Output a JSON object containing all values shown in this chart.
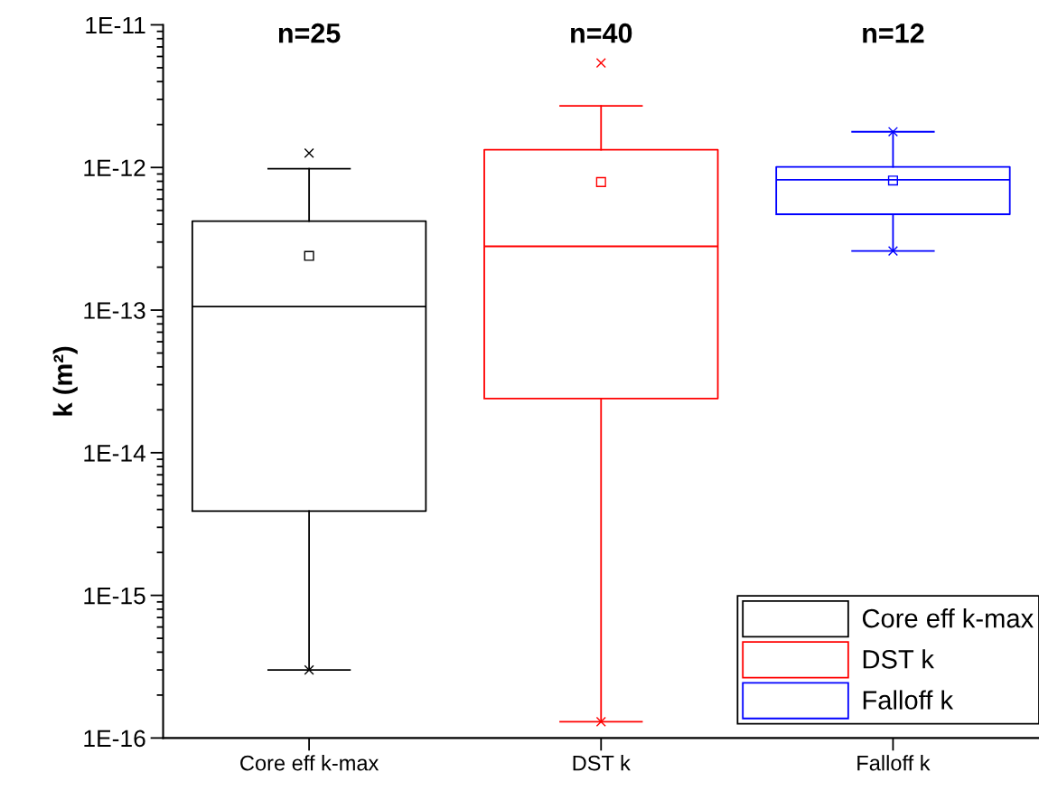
{
  "chart_data": {
    "type": "box",
    "ylabel": "k (m²)",
    "categories": [
      "Core eff k-max",
      "DST k",
      "Falloff k"
    ],
    "log": "y",
    "ylim": [
      1e-16,
      1e-11
    ],
    "yticks": [
      {
        "value": 1e-16,
        "label": "1E-16"
      },
      {
        "value": 1e-15,
        "label": "1E-15"
      },
      {
        "value": 1e-14,
        "label": "1E-14"
      },
      {
        "value": 1e-13,
        "label": "1E-13"
      },
      {
        "value": 1e-12,
        "label": "1E-12"
      },
      {
        "value": 1e-11,
        "label": "1E-11"
      }
    ],
    "grid": false,
    "legend": "bottom right",
    "series": [
      {
        "name": "Core eff k-max",
        "color": "#000000",
        "boxes": [
          {
            "low": 3e-16,
            "q1": 3.9e-15,
            "median": 1.06e-13,
            "q3": 4.2e-13,
            "high": 9.8e-13,
            "mean": 2.4e-13,
            "outliers": [
              1.26e-12,
              3e-16
            ]
          },
          null,
          null
        ]
      },
      {
        "name": "DST k",
        "color": "#ff0000",
        "boxes": [
          null,
          {
            "low": 1.3e-16,
            "q1": 2.4e-14,
            "median": 2.8e-13,
            "q3": 1.33e-12,
            "high": 2.7e-12,
            "mean": 7.9e-13,
            "outliers": [
              5.4e-12,
              1.3e-16
            ]
          },
          null
        ]
      },
      {
        "name": "Falloff k",
        "color": "#0000ff",
        "boxes": [
          null,
          null,
          {
            "low": 2.6e-13,
            "q1": 4.7e-13,
            "median": 8.2e-13,
            "q3": 1.01e-12,
            "high": 1.78e-12,
            "mean": 8.1e-13,
            "outliers": [
              1.78e-12,
              2.6e-13
            ]
          }
        ]
      }
    ],
    "annotations": [
      "n=25",
      "n=40",
      "n=12"
    ]
  }
}
